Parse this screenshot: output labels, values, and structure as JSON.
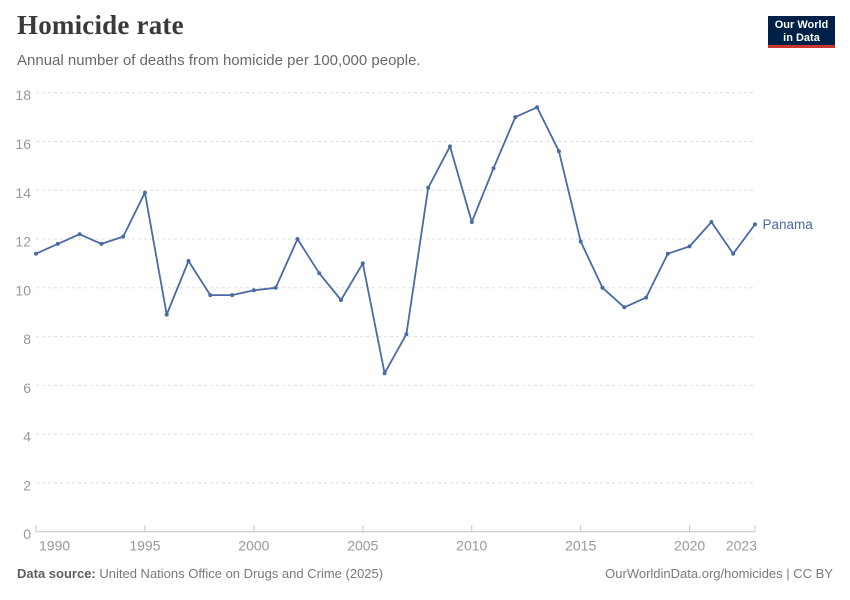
{
  "header": {
    "title": "Homicide rate",
    "subtitle": "Annual number of deaths from homicide per 100,000 people."
  },
  "logo": {
    "line1": "Our World",
    "line2": "in Data",
    "bg": "#002147",
    "accent": "#c9372e"
  },
  "chart_data": {
    "type": "line",
    "title": "Homicide rate",
    "subtitle": "Annual number of deaths from homicide per 100,000 people.",
    "x": [
      1990,
      1991,
      1992,
      1993,
      1994,
      1995,
      1996,
      1997,
      1998,
      1999,
      2000,
      2001,
      2002,
      2003,
      2004,
      2005,
      2006,
      2007,
      2008,
      2009,
      2010,
      2011,
      2012,
      2013,
      2014,
      2015,
      2016,
      2017,
      2018,
      2019,
      2020,
      2021,
      2022,
      2023
    ],
    "series": [
      {
        "name": "Panama",
        "values": [
          11.4,
          11.8,
          12.2,
          11.8,
          12.1,
          13.9,
          8.9,
          11.1,
          9.7,
          9.7,
          9.9,
          10.0,
          12.0,
          10.6,
          9.5,
          11.0,
          6.5,
          8.1,
          14.1,
          15.8,
          12.7,
          14.9,
          17.0,
          17.4,
          15.6,
          11.9,
          10.0,
          9.2,
          9.6,
          11.4,
          11.7,
          12.7,
          11.4,
          12.6
        ]
      }
    ],
    "ylim": [
      0,
      18
    ],
    "yticks": [
      0,
      2,
      4,
      6,
      8,
      10,
      12,
      14,
      16,
      18
    ],
    "xticks": [
      1990,
      1995,
      2000,
      2005,
      2010,
      2015,
      2020,
      2023
    ],
    "grid": "horizontal-dashed",
    "legend": "inline-end-label",
    "line_color": "#4a6ba3",
    "label_color": "#4a6ba3",
    "tick_color": "#999999",
    "grid_color": "#dedede",
    "axis_color": "#c4c4c4"
  },
  "footer": {
    "source_label": "Data source:",
    "source_text": " United Nations Office on Drugs and Crime (2025)",
    "right_text": "OurWorldinData.org/homicides | CC BY"
  }
}
